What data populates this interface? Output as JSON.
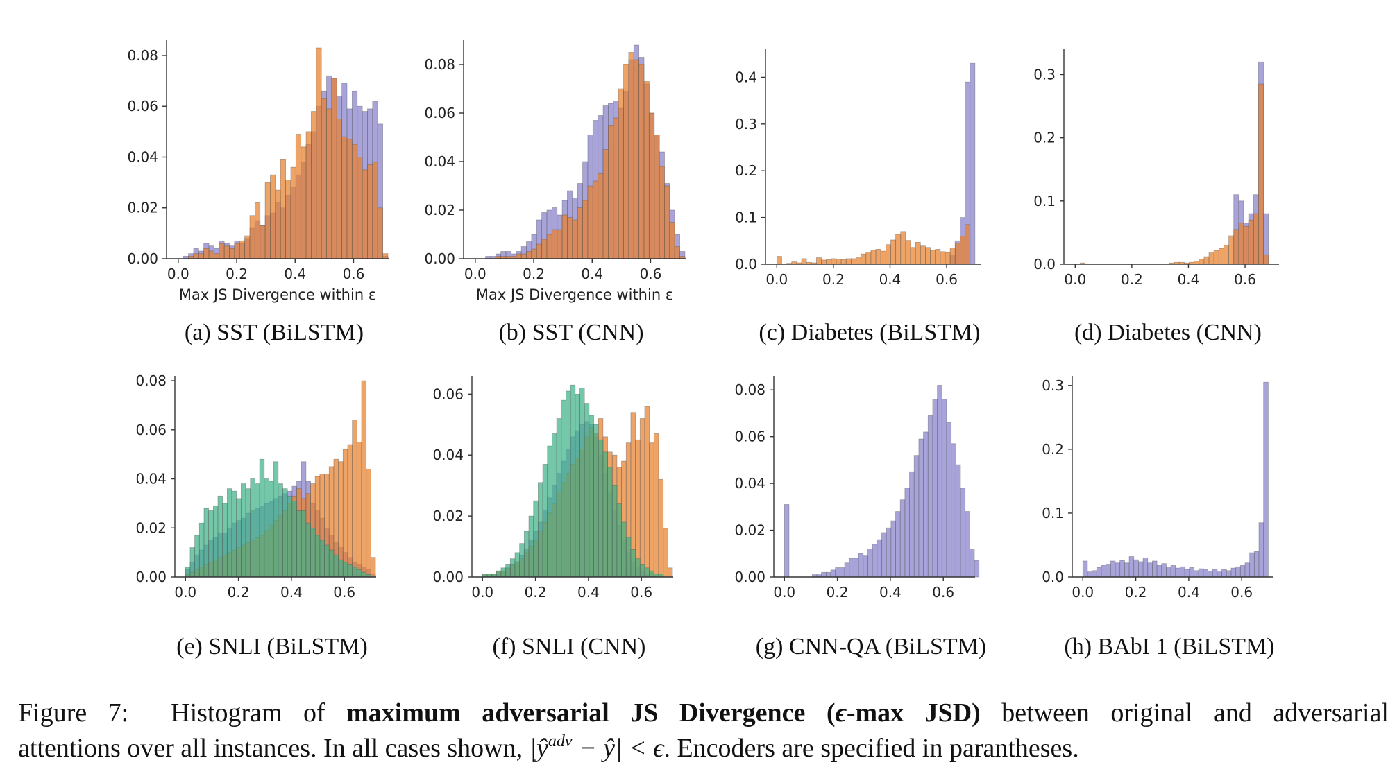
{
  "colors": {
    "purple": "#8b85cc",
    "orange": "#e8802d",
    "green": "#3fb187",
    "edge": "#555555"
  },
  "caption": {
    "label": "Figure 7:",
    "text1": "Histogram of",
    "bold1": "maximum adversarial JS Divergence (",
    "eps": "ϵ",
    "bold2": "-max JSD)",
    "text2": "between original and adversarial",
    "text3": "attentions over all instances. In all cases shown,",
    "math_a": "|ŷ",
    "math_sup": "adv",
    "math_b": "− ŷ| < ϵ",
    "text4": ". Encoders are specified in parantheses."
  },
  "chart_data": [
    {
      "id": "a",
      "type": "bar",
      "subtitle": "(a) SST (BiLSTM)",
      "xlabel": "Max JS Divergence within ε",
      "xlim": [
        -0.04,
        0.72
      ],
      "ylim": [
        0,
        0.086
      ],
      "xticks": [
        "0.0",
        "0.2",
        "0.4",
        "0.6"
      ],
      "xtick_values": [
        0.0,
        0.2,
        0.4,
        0.6
      ],
      "yticks": [
        "0.00",
        "0.02",
        "0.04",
        "0.06",
        "0.08"
      ],
      "ytick_values": [
        0,
        0.02,
        0.04,
        0.06,
        0.08
      ],
      "bin_start": 0.0,
      "bin_width": 0.0175,
      "series": [
        {
          "color": "purple",
          "values": [
            0.0,
            0.001,
            0.002,
            0.004,
            0.003,
            0.006,
            0.005,
            0.004,
            0.007,
            0.006,
            0.005,
            0.007,
            0.006,
            0.008,
            0.012,
            0.015,
            0.013,
            0.017,
            0.018,
            0.022,
            0.02,
            0.025,
            0.028,
            0.033,
            0.038,
            0.045,
            0.05,
            0.06,
            0.066,
            0.072,
            0.071,
            0.064,
            0.069,
            0.059,
            0.066,
            0.06,
            0.058,
            0.059,
            0.062,
            0.053,
            0.001
          ]
        },
        {
          "color": "orange",
          "values": [
            0.0,
            0.0,
            0.001,
            0.002,
            0.002,
            0.004,
            0.003,
            0.002,
            0.006,
            0.005,
            0.004,
            0.006,
            0.007,
            0.009,
            0.017,
            0.022,
            0.013,
            0.03,
            0.033,
            0.027,
            0.039,
            0.031,
            0.036,
            0.049,
            0.044,
            0.05,
            0.058,
            0.083,
            0.063,
            0.059,
            0.071,
            0.055,
            0.048,
            0.047,
            0.045,
            0.04,
            0.035,
            0.037,
            0.038,
            0.02,
            0.002
          ]
        }
      ]
    },
    {
      "id": "b",
      "type": "bar",
      "subtitle": "(b) SST (CNN)",
      "xlabel": "Max JS Divergence within ε",
      "xlim": [
        -0.04,
        0.72
      ],
      "ylim": [
        0,
        0.09
      ],
      "xticks": [
        "0.0",
        "0.2",
        "0.4",
        "0.6"
      ],
      "xtick_values": [
        0.0,
        0.2,
        0.4,
        0.6
      ],
      "yticks": [
        "0.00",
        "0.02",
        "0.04",
        "0.06",
        "0.08"
      ],
      "ytick_values": [
        0,
        0.02,
        0.04,
        0.06,
        0.08
      ],
      "bin_start": 0.0,
      "bin_width": 0.0175,
      "series": [
        {
          "color": "purple",
          "values": [
            0.0,
            0.0,
            0.001,
            0.001,
            0.002,
            0.003,
            0.003,
            0.002,
            0.003,
            0.005,
            0.007,
            0.01,
            0.016,
            0.019,
            0.02,
            0.021,
            0.018,
            0.024,
            0.028,
            0.025,
            0.031,
            0.04,
            0.051,
            0.057,
            0.059,
            0.063,
            0.064,
            0.065,
            0.062,
            0.069,
            0.082,
            0.088,
            0.083,
            0.072,
            0.06,
            0.051,
            0.044,
            0.031,
            0.02,
            0.01,
            0.003
          ]
        },
        {
          "color": "orange",
          "values": [
            0.0,
            0.0,
            0.0,
            0.0,
            0.001,
            0.001,
            0.001,
            0.001,
            0.002,
            0.002,
            0.003,
            0.004,
            0.006,
            0.008,
            0.01,
            0.012,
            0.012,
            0.018,
            0.017,
            0.016,
            0.021,
            0.024,
            0.03,
            0.032,
            0.035,
            0.045,
            0.055,
            0.058,
            0.07,
            0.08,
            0.085,
            0.082,
            0.08,
            0.073,
            0.06,
            0.051,
            0.038,
            0.03,
            0.015,
            0.005,
            0.001
          ]
        }
      ]
    },
    {
      "id": "c",
      "type": "bar",
      "subtitle": "(c) Diabetes (BiLSTM)",
      "xlabel": "",
      "xlim": [
        -0.04,
        0.72
      ],
      "ylim": [
        0,
        0.46
      ],
      "xticks": [
        "0.0",
        "0.2",
        "0.4",
        "0.6"
      ],
      "xtick_values": [
        0.0,
        0.2,
        0.4,
        0.6
      ],
      "yticks": [
        "0.0",
        "0.1",
        "0.2",
        "0.3",
        "0.4"
      ],
      "ytick_values": [
        0,
        0.1,
        0.2,
        0.3,
        0.4
      ],
      "bin_start": 0.0,
      "bin_width": 0.0175,
      "series": [
        {
          "color": "purple",
          "values": [
            0,
            0,
            0,
            0,
            0,
            0,
            0,
            0,
            0,
            0,
            0,
            0,
            0,
            0,
            0,
            0,
            0,
            0,
            0,
            0,
            0,
            0,
            0,
            0,
            0,
            0,
            0,
            0,
            0,
            0,
            0,
            0,
            0,
            0,
            0,
            0.02,
            0.05,
            0.1,
            0.39,
            0.43,
            0
          ]
        },
        {
          "color": "orange",
          "values": [
            0.017,
            0.0,
            0.002,
            0.005,
            0.003,
            0.012,
            0.004,
            0.003,
            0.014,
            0.009,
            0.01,
            0.012,
            0.011,
            0.01,
            0.012,
            0.012,
            0.014,
            0.022,
            0.026,
            0.03,
            0.032,
            0.028,
            0.042,
            0.052,
            0.064,
            0.07,
            0.051,
            0.036,
            0.047,
            0.039,
            0.036,
            0.03,
            0.032,
            0.027,
            0.025,
            0.035,
            0.045,
            0.06,
            0.085,
            0,
            0
          ]
        }
      ]
    },
    {
      "id": "d",
      "type": "bar",
      "subtitle": "(d) Diabetes (CNN)",
      "xlabel": "",
      "xlim": [
        -0.04,
        0.72
      ],
      "ylim": [
        0,
        0.34
      ],
      "xticks": [
        "0.0",
        "0.2",
        "0.4",
        "0.6"
      ],
      "xtick_values": [
        0.0,
        0.2,
        0.4,
        0.6
      ],
      "yticks": [
        "0.0",
        "0.1",
        "0.2",
        "0.3"
      ],
      "ytick_values": [
        0,
        0.1,
        0.2,
        0.3
      ],
      "bin_start": 0.0,
      "bin_width": 0.0175,
      "series": [
        {
          "color": "purple",
          "values": [
            0,
            0,
            0,
            0,
            0,
            0,
            0,
            0,
            0,
            0,
            0,
            0,
            0,
            0,
            0,
            0,
            0,
            0,
            0,
            0,
            0,
            0,
            0,
            0,
            0,
            0,
            0,
            0,
            0,
            0,
            0,
            0,
            0.11,
            0.1,
            0.065,
            0.08,
            0.11,
            0.32,
            0.08,
            0,
            0
          ]
        },
        {
          "color": "orange",
          "values": [
            0.0,
            0.002,
            0.0,
            0.0,
            0.0,
            0.0,
            0.0,
            0.0,
            0.0,
            0.0,
            0.0,
            0.0,
            0.0,
            0.0,
            0.0,
            0.0,
            0.0,
            0.0,
            0.0,
            0.002,
            0.003,
            0.003,
            0.002,
            0.003,
            0.005,
            0.008,
            0.012,
            0.018,
            0.022,
            0.025,
            0.03,
            0.045,
            0.055,
            0.065,
            0.06,
            0.07,
            0.08,
            0.285,
            0.015,
            0,
            0
          ]
        }
      ]
    },
    {
      "id": "e",
      "type": "bar",
      "subtitle": "(e) SNLI (BiLSTM)",
      "xlabel": "",
      "xlim": [
        -0.04,
        0.72
      ],
      "ylim": [
        0,
        0.082
      ],
      "xticks": [
        "0.0",
        "0.2",
        "0.4",
        "0.6"
      ],
      "xtick_values": [
        0.0,
        0.2,
        0.4,
        0.6
      ],
      "yticks": [
        "0.00",
        "0.02",
        "0.04",
        "0.06",
        "0.08"
      ],
      "ytick_values": [
        0,
        0.02,
        0.04,
        0.06,
        0.08
      ],
      "bin_start": 0.0,
      "bin_width": 0.0175,
      "series": [
        {
          "color": "purple",
          "values": [
            0.003,
            0.006,
            0.009,
            0.011,
            0.013,
            0.015,
            0.016,
            0.018,
            0.018,
            0.02,
            0.022,
            0.023,
            0.024,
            0.026,
            0.027,
            0.028,
            0.029,
            0.03,
            0.031,
            0.032,
            0.033,
            0.034,
            0.035,
            0.037,
            0.039,
            0.047,
            0.039,
            0.03,
            0.027,
            0.024,
            0.02,
            0.017,
            0.014,
            0.012,
            0.01,
            0.008,
            0.006,
            0.005,
            0.004,
            0.003,
            0.001
          ]
        },
        {
          "color": "orange",
          "values": [
            0.001,
            0.002,
            0.003,
            0.004,
            0.005,
            0.006,
            0.007,
            0.008,
            0.009,
            0.01,
            0.011,
            0.012,
            0.013,
            0.014,
            0.015,
            0.016,
            0.017,
            0.019,
            0.021,
            0.023,
            0.025,
            0.027,
            0.03,
            0.033,
            0.036,
            0.032,
            0.034,
            0.038,
            0.041,
            0.042,
            0.042,
            0.045,
            0.048,
            0.047,
            0.052,
            0.054,
            0.064,
            0.055,
            0.08,
            0.044,
            0.008
          ]
        },
        {
          "color": "green",
          "values": [
            0.004,
            0.012,
            0.017,
            0.022,
            0.028,
            0.027,
            0.029,
            0.033,
            0.03,
            0.036,
            0.035,
            0.032,
            0.038,
            0.036,
            0.04,
            0.038,
            0.048,
            0.04,
            0.039,
            0.047,
            0.038,
            0.036,
            0.033,
            0.031,
            0.027,
            0.027,
            0.022,
            0.02,
            0.017,
            0.015,
            0.013,
            0.011,
            0.009,
            0.007,
            0.006,
            0.005,
            0.004,
            0.003,
            0.002,
            0.001,
            0.0
          ]
        }
      ]
    },
    {
      "id": "f",
      "type": "bar",
      "subtitle": "(f) SNLI (CNN)",
      "xlabel": "",
      "xlim": [
        -0.04,
        0.72
      ],
      "ylim": [
        0,
        0.066
      ],
      "xticks": [
        "0.0",
        "0.2",
        "0.4",
        "0.6"
      ],
      "xtick_values": [
        0.0,
        0.2,
        0.4,
        0.6
      ],
      "yticks": [
        "0.00",
        "0.02",
        "0.04",
        "0.06"
      ],
      "ytick_values": [
        0,
        0.02,
        0.04,
        0.06
      ],
      "bin_start": 0.0,
      "bin_width": 0.0175,
      "series": [
        {
          "color": "purple",
          "values": [
            0.0,
            0.0,
            0.001,
            0.001,
            0.002,
            0.003,
            0.004,
            0.005,
            0.007,
            0.009,
            0.012,
            0.015,
            0.018,
            0.022,
            0.026,
            0.03,
            0.034,
            0.038,
            0.042,
            0.046,
            0.048,
            0.05,
            0.051,
            0.05,
            0.046,
            0.04,
            0.034,
            0.028,
            0.022,
            0.017,
            0.012,
            0.008,
            0.005,
            0.003,
            0.002,
            0.001,
            0.0,
            0.0,
            0.0,
            0.0,
            0.0
          ]
        },
        {
          "color": "orange",
          "values": [
            0.001,
            0.001,
            0.001,
            0.002,
            0.002,
            0.003,
            0.004,
            0.005,
            0.006,
            0.008,
            0.01,
            0.012,
            0.015,
            0.018,
            0.021,
            0.024,
            0.028,
            0.031,
            0.034,
            0.037,
            0.039,
            0.042,
            0.046,
            0.049,
            0.047,
            0.052,
            0.046,
            0.041,
            0.04,
            0.036,
            0.038,
            0.044,
            0.054,
            0.045,
            0.052,
            0.056,
            0.044,
            0.047,
            0.032,
            0.016,
            0.003
          ]
        },
        {
          "color": "green",
          "values": [
            0.001,
            0.001,
            0.001,
            0.002,
            0.003,
            0.004,
            0.006,
            0.008,
            0.011,
            0.015,
            0.02,
            0.025,
            0.031,
            0.037,
            0.043,
            0.047,
            0.052,
            0.058,
            0.061,
            0.063,
            0.06,
            0.062,
            0.057,
            0.053,
            0.05,
            0.045,
            0.041,
            0.036,
            0.03,
            0.024,
            0.018,
            0.013,
            0.009,
            0.006,
            0.004,
            0.003,
            0.002,
            0.001,
            0.001,
            0.0,
            0.0
          ]
        }
      ]
    },
    {
      "id": "g",
      "type": "bar",
      "subtitle": "(g) CNN-QA (BiLSTM)",
      "xlabel": "",
      "xlim": [
        -0.04,
        0.72
      ],
      "ylim": [
        0,
        0.086
      ],
      "xticks": [
        "0.0",
        "0.2",
        "0.4",
        "0.6"
      ],
      "xtick_values": [
        0.0,
        0.2,
        0.4,
        0.6
      ],
      "yticks": [
        "0.00",
        "0.02",
        "0.04",
        "0.06",
        "0.08"
      ],
      "ytick_values": [
        0,
        0.02,
        0.04,
        0.06,
        0.08
      ],
      "bin_start": 0.0,
      "bin_width": 0.0175,
      "series": [
        {
          "color": "purple",
          "values": [
            0.031,
            0.0,
            0.0,
            0.0,
            0.0,
            0.0,
            0.001,
            0.001,
            0.002,
            0.002,
            0.003,
            0.004,
            0.004,
            0.006,
            0.008,
            0.008,
            0.01,
            0.009,
            0.012,
            0.014,
            0.016,
            0.019,
            0.021,
            0.024,
            0.028,
            0.033,
            0.038,
            0.045,
            0.052,
            0.059,
            0.062,
            0.069,
            0.076,
            0.082,
            0.076,
            0.066,
            0.057,
            0.048,
            0.038,
            0.028,
            0.012,
            0.007
          ]
        }
      ]
    },
    {
      "id": "h",
      "type": "bar",
      "subtitle": "(h) BAbI 1 (BiLSTM)",
      "xlabel": "",
      "xlim": [
        -0.04,
        0.72
      ],
      "ylim": [
        0,
        0.315
      ],
      "xticks": [
        "0.0",
        "0.2",
        "0.4",
        "0.6"
      ],
      "xtick_values": [
        0.0,
        0.2,
        0.4,
        0.6
      ],
      "yticks": [
        "0.0",
        "0.1",
        "0.2",
        "0.3"
      ],
      "ytick_values": [
        0,
        0.1,
        0.2,
        0.3
      ],
      "bin_start": 0.0,
      "bin_width": 0.0175,
      "series": [
        {
          "color": "purple",
          "values": [
            0.025,
            0.008,
            0.01,
            0.015,
            0.018,
            0.02,
            0.025,
            0.022,
            0.026,
            0.022,
            0.032,
            0.027,
            0.024,
            0.03,
            0.022,
            0.025,
            0.018,
            0.021,
            0.016,
            0.018,
            0.014,
            0.016,
            0.012,
            0.015,
            0.01,
            0.013,
            0.012,
            0.009,
            0.012,
            0.008,
            0.012,
            0.01,
            0.014,
            0.016,
            0.018,
            0.022,
            0.038,
            0.04,
            0.085,
            0.305,
            0.0
          ]
        }
      ]
    }
  ]
}
